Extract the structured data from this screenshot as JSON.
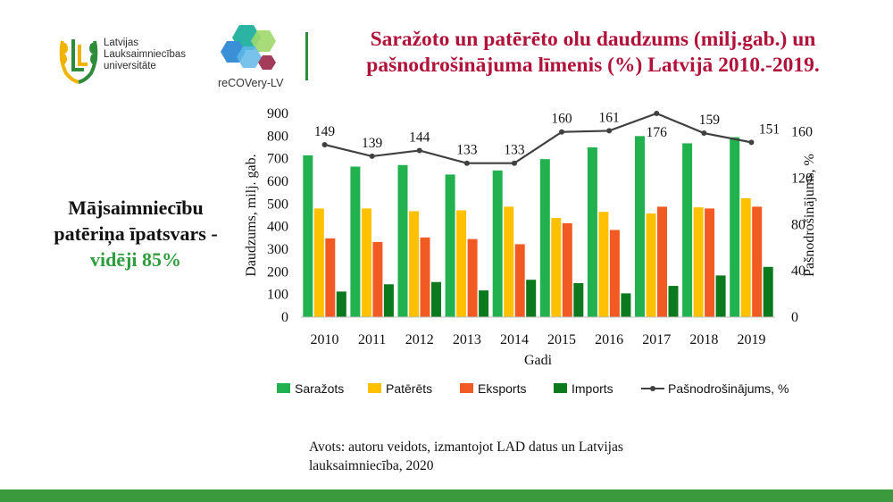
{
  "logos": {
    "llu": {
      "line1": "Latvijas",
      "line2": "Lauksaimniecības",
      "line3": "universitāte"
    },
    "recovery": {
      "name": "reCOVery-LV"
    }
  },
  "title": {
    "line1": "Saražoto un patērēto olu daudzums (milj.gab.) un",
    "line2": "pašnodrošinājuma līmenis (%) Latvijā 2010.-2019."
  },
  "side_note": {
    "line1": "Mājsaimniecību",
    "line2": "patēriņa īpatsvars -",
    "highlight": "vidēji 85%"
  },
  "source": {
    "line1": "Avots: autoru veidots, izmantojot LAD datus un Latvijas",
    "line2": "lauksaimniecība, 2020"
  },
  "colors": {
    "title": "#b0123a",
    "sarazots": "#21b14e",
    "pateretes": "#ffc000",
    "eksports": "#f15a22",
    "imports": "#0b7a1e",
    "line": "#404040",
    "accent_green": "#3a9a3e"
  },
  "chart_data": {
    "type": "bar",
    "categories": [
      "2010",
      "2011",
      "2012",
      "2013",
      "2014",
      "2015",
      "2016",
      "2017",
      "2018",
      "2019"
    ],
    "xlabel": "Gadi",
    "ylabel": "Daudzums, milj. gab.",
    "y2label": "Pašnodrošinājums, %",
    "ylim": [
      0,
      900
    ],
    "yticks": [
      "0",
      "100",
      "200",
      "300",
      "400",
      "500",
      "600",
      "700",
      "800",
      "900"
    ],
    "y2lim": [
      0,
      176
    ],
    "y2ticks": [
      "0",
      "40",
      "80",
      "120",
      "160"
    ],
    "series": [
      {
        "name": "Saražots",
        "kind": "bar",
        "values": [
          715,
          665,
          672,
          630,
          648,
          698,
          750,
          800,
          768,
          795
        ]
      },
      {
        "name": "Patērēts",
        "kind": "bar",
        "values": [
          480,
          480,
          468,
          472,
          488,
          438,
          465,
          458,
          485,
          525
        ]
      },
      {
        "name": "Eksports",
        "kind": "bar",
        "values": [
          348,
          332,
          352,
          345,
          322,
          415,
          385,
          488,
          480,
          488
        ]
      },
      {
        "name": "Imports",
        "kind": "bar",
        "values": [
          113,
          145,
          155,
          118,
          165,
          150,
          105,
          138,
          184,
          222
        ]
      },
      {
        "name": "Pašnodrošinājums, %",
        "kind": "line",
        "axis": "right",
        "values": [
          149,
          139,
          144,
          133,
          133,
          160,
          161,
          176,
          159,
          151
        ],
        "labels": [
          "149",
          "139",
          "144",
          "133",
          "133",
          "160",
          "161",
          "176",
          "159",
          "151"
        ]
      }
    ],
    "legend_position": "bottom",
    "grid": false
  }
}
